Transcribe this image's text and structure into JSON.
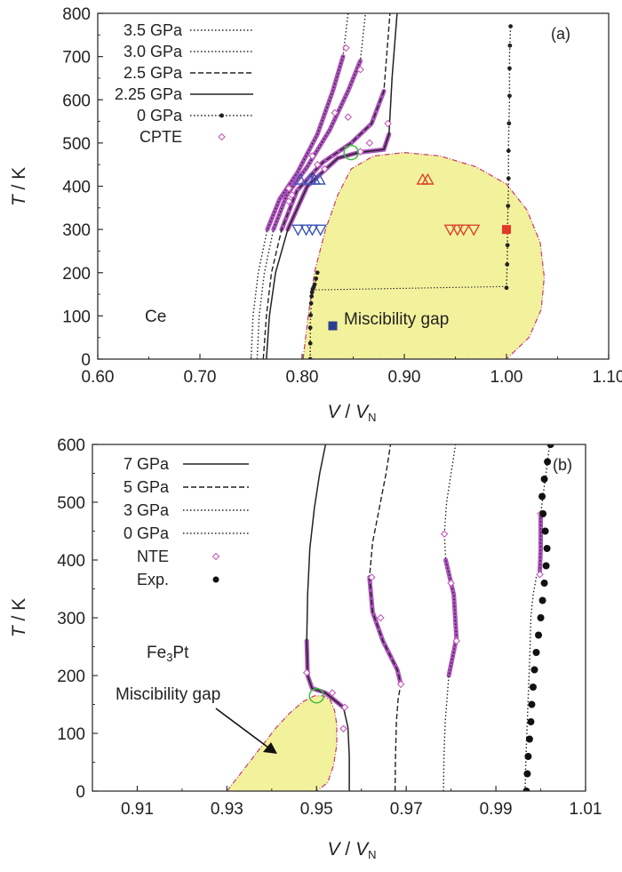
{
  "chart_data": [
    {
      "type": "line",
      "panel_label": "(a)",
      "material": "Ce",
      "xlabel_main": "V",
      "xlabel_den": "V",
      "xlabel_sub": "N",
      "ylabel_main": "T",
      "ylabel_unit": "K",
      "xlim": [
        0.6,
        1.1
      ],
      "ylim": [
        0,
        800
      ],
      "x_ticks": [
        "0.60",
        "0.70",
        "0.80",
        "0.90",
        "1.00",
        "1.10"
      ],
      "y_ticks": [
        "0",
        "100",
        "200",
        "300",
        "400",
        "500",
        "600",
        "700",
        "800"
      ],
      "legend": [
        "3.5 GPa",
        "3.0 GPa",
        "2.5 GPa",
        "2.25 GPa",
        "0 GPa",
        "CPTE"
      ],
      "annotation": "Miscibility gap",
      "series": [
        {
          "name": "3.5 GPa",
          "style": "dotted",
          "x": [
            0.75,
            0.752,
            0.757,
            0.766,
            0.778,
            0.795,
            0.815,
            0.83,
            0.84,
            0.845
          ],
          "y": [
            0,
            100,
            200,
            300,
            370,
            430,
            520,
            620,
            700,
            800
          ]
        },
        {
          "name": "3.0 GPa",
          "style": "dotted",
          "x": [
            0.756,
            0.758,
            0.763,
            0.772,
            0.785,
            0.805,
            0.827,
            0.845,
            0.857,
            0.862
          ],
          "y": [
            0,
            100,
            200,
            300,
            380,
            445,
            530,
            620,
            690,
            800
          ]
        },
        {
          "name": "2.5 GPa",
          "style": "dashed",
          "x": [
            0.762,
            0.765,
            0.77,
            0.78,
            0.795,
            0.82,
            0.848,
            0.868,
            0.88,
            0.886
          ],
          "y": [
            0,
            100,
            200,
            300,
            390,
            455,
            500,
            545,
            620,
            800
          ]
        },
        {
          "name": "2.25 GPa",
          "style": "solid",
          "x": [
            0.765,
            0.768,
            0.774,
            0.786,
            0.805,
            0.835,
            0.855,
            0.88,
            0.885,
            0.888,
            0.893
          ],
          "y": [
            0,
            100,
            200,
            300,
            400,
            465,
            478,
            485,
            520,
            650,
            800
          ]
        },
        {
          "name": "0 GPa",
          "style": "dot-marker",
          "x": [
            0.808,
            0.808,
            0.809,
            0.81,
            0.812,
            0.815
          ],
          "y": [
            0,
            80,
            140,
            160,
            170,
            200
          ]
        },
        {
          "name": "0 GPa",
          "style": "dot-marker",
          "x": [
            1.0,
            1.001,
            1.001,
            1.002,
            1.002,
            1.003,
            1.003,
            1.004
          ],
          "y": [
            165,
            250,
            300,
            400,
            500,
            600,
            700,
            770
          ]
        },
        {
          "name": "CPTE",
          "style": "diamond",
          "x": [
            0.787,
            0.81,
            0.832,
            0.843,
            0.787,
            0.815,
            0.845,
            0.857,
            0.79,
            0.822,
            0.857,
            0.866,
            0.884
          ],
          "y": [
            395,
            470,
            570,
            720,
            365,
            450,
            560,
            670,
            380,
            440,
            480,
            500,
            545
          ]
        }
      ],
      "miscibility_gap": {
        "x": [
          0.801,
          0.806,
          0.812,
          0.823,
          0.835,
          0.848,
          0.87,
          0.9,
          0.935,
          0.97,
          1.0,
          1.02,
          1.033,
          1.037,
          1.034,
          1.022,
          1.0,
          0.97,
          0.93,
          0.89,
          0.86,
          0.82
        ],
        "y": [
          0,
          100,
          200,
          300,
          380,
          440,
          470,
          478,
          470,
          445,
          405,
          345,
          270,
          190,
          115,
          50,
          0,
          0,
          0,
          0,
          0,
          0
        ]
      },
      "tie_line": {
        "x": [
          0.81,
          1.0
        ],
        "y": [
          160,
          168
        ]
      },
      "critical_point": {
        "x": 0.848,
        "y": 478
      },
      "points_blue_up": {
        "x": [
          0.798,
          0.808,
          0.812,
          0.817
        ],
        "y": [
          415,
          415,
          415,
          415
        ]
      },
      "points_blue_down": {
        "x": [
          0.796,
          0.804,
          0.81,
          0.818
        ],
        "y": [
          300,
          300,
          300,
          300
        ]
      },
      "points_red_up": {
        "x": [
          0.918,
          0.923
        ],
        "y": [
          415,
          415
        ]
      },
      "points_red_down": {
        "x": [
          0.945,
          0.952,
          0.958,
          0.968
        ],
        "y": [
          300,
          300,
          300,
          300
        ]
      },
      "square_red": {
        "x": 1.0,
        "y": 300
      },
      "square_blue": {
        "x": 0.83,
        "y": 77
      }
    },
    {
      "type": "line",
      "panel_label": "(b)",
      "material_main": "Fe",
      "material_sub": "3",
      "material_tail": "Pt",
      "xlabel_main": "V",
      "xlabel_den": "V",
      "xlabel_sub": "N",
      "ylabel_main": "T",
      "ylabel_unit": "K",
      "xlim": [
        0.9,
        1.01
      ],
      "ylim": [
        0,
        600
      ],
      "x_ticks": [
        "0.91",
        "0.93",
        "0.95",
        "0.97",
        "0.99",
        "1.01"
      ],
      "y_ticks": [
        "0",
        "100",
        "200",
        "300",
        "400",
        "500",
        "600"
      ],
      "legend": [
        "7 GPa",
        "5 GPa",
        "3 GPa",
        "0 GPa",
        "NTE",
        "Exp."
      ],
      "annotation": "Miscibility gap",
      "series": [
        {
          "name": "7 GPa",
          "style": "solid",
          "x": [
            0.9573,
            0.9573,
            0.957,
            0.956,
            0.952,
            0.949,
            0.948,
            0.9478,
            0.948,
            0.9485,
            0.9495,
            0.9507,
            0.952
          ],
          "y": [
            0,
            60,
            110,
            145,
            170,
            178,
            200,
            260,
            340,
            420,
            490,
            550,
            600
          ]
        },
        {
          "name": "5 GPa",
          "style": "dashed",
          "x": [
            0.9675,
            0.9676,
            0.9678,
            0.9682,
            0.9688,
            0.968,
            0.9648,
            0.9625,
            0.9618,
            0.9625,
            0.964,
            0.9655,
            0.9665
          ],
          "y": [
            0,
            60,
            120,
            160,
            185,
            210,
            260,
            310,
            370,
            430,
            490,
            550,
            600
          ]
        },
        {
          "name": "3 GPa",
          "style": "dotted",
          "x": [
            0.9783,
            0.9784,
            0.9787,
            0.9795,
            0.9812,
            0.9806,
            0.9788,
            0.9785,
            0.979,
            0.98,
            0.981
          ],
          "y": [
            0,
            60,
            120,
            200,
            265,
            340,
            400,
            445,
            500,
            550,
            600
          ]
        },
        {
          "name": "0 GPa",
          "style": "dotted",
          "x": [
            0.9965,
            0.9967,
            0.997,
            0.9973,
            0.9976,
            0.9978,
            0.9983,
            0.999,
            0.9998,
            1.0,
            1.0,
            1.001,
            1.002
          ],
          "y": [
            0,
            60,
            120,
            180,
            240,
            300,
            340,
            370,
            380,
            420,
            480,
            540,
            600
          ]
        },
        {
          "name": "NTE",
          "style": "diamond",
          "x": [
            0.9478,
            0.9535,
            0.9563,
            0.956,
            0.9623,
            0.9643,
            0.9688,
            0.9785,
            0.98,
            0.9812,
            0.9998,
            1.0
          ],
          "y": [
            205,
            170,
            145,
            108,
            370,
            300,
            185,
            445,
            360,
            260,
            375,
            480
          ]
        },
        {
          "name": "Exp.",
          "style": "dot-marker",
          "x": [
            0.9968,
            0.997,
            0.9972,
            0.9975,
            0.9978,
            0.998,
            0.9983,
            0.9986,
            0.999,
            0.9995,
            1.0,
            1.0004,
            1.0008,
            1.0012,
            1.0014,
            1.001,
            1.0005,
            1.0003,
            1.0008,
            1.0015,
            1.0022
          ],
          "y": [
            0,
            30,
            60,
            90,
            120,
            150,
            180,
            210,
            240,
            270,
            300,
            330,
            360,
            390,
            420,
            450,
            480,
            510,
            540,
            570,
            600
          ]
        }
      ],
      "miscibility_gap": {
        "x": [
          0.93,
          0.932,
          0.935,
          0.938,
          0.941,
          0.944,
          0.947,
          0.9495,
          0.9515,
          0.953,
          0.954,
          0.9545,
          0.9545,
          0.9538,
          0.9525,
          0.95
        ],
        "y": [
          0,
          20,
          50,
          80,
          110,
          135,
          155,
          165,
          165,
          158,
          140,
          115,
          80,
          45,
          15,
          0
        ]
      },
      "critical_point": {
        "x": 0.95,
        "y": 165
      }
    }
  ]
}
